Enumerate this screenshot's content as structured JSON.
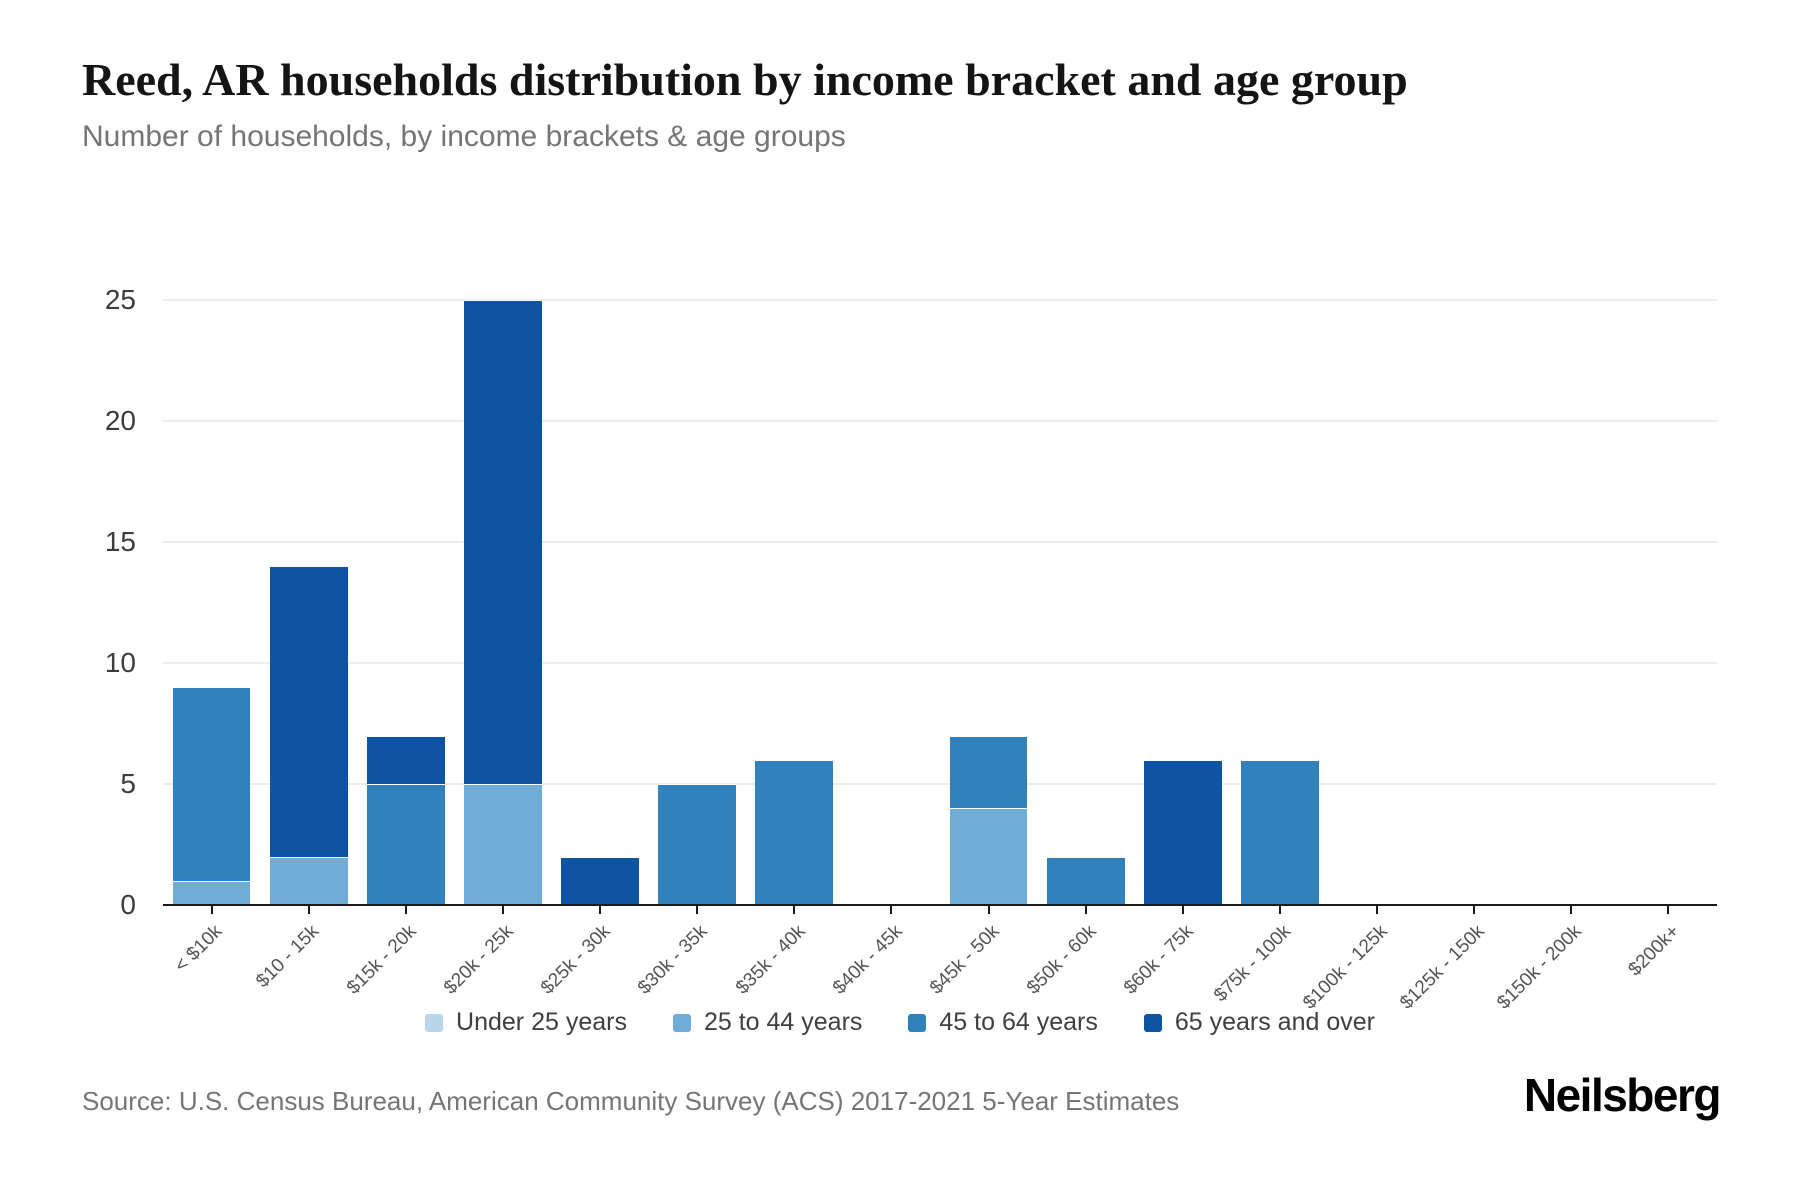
{
  "header": {
    "title": "Reed, AR households distribution by income bracket and age group",
    "subtitle": "Number of households, by income brackets & age groups"
  },
  "footer": {
    "source": "Source: U.S. Census Bureau, American Community Survey (ACS) 2017-2021 5-Year Estimates",
    "logo": "Neilsberg"
  },
  "colors": {
    "under_25": "#b9d5ea",
    "age_25_44": "#6fadd8",
    "age_45_64": "#3181bd",
    "age_65_over": "#0d55a2",
    "gridline": "#ededed",
    "axis": "#1a1a1a",
    "subtitle_text": "#757575"
  },
  "chart_data": {
    "type": "bar",
    "stacked": true,
    "title": "Reed, AR households distribution by income bracket and age group",
    "subtitle": "Number of households, by income brackets & age groups",
    "xlabel": "",
    "ylabel": "",
    "ylim": [
      0,
      25
    ],
    "yticks": [
      0,
      5,
      10,
      15,
      20,
      25
    ],
    "grid": true,
    "legend_position": "bottom",
    "categories": [
      "< $10k",
      "$10 - 15k",
      "$15k - 20k",
      "$20k - 25k",
      "$25k - 30k",
      "$30k - 35k",
      "$35k - 40k",
      "$40k - 45k",
      "$45k - 50k",
      "$50k - 60k",
      "$60k - 75k",
      "$75k - 100k",
      "$100k - 125k",
      "$125k - 150k",
      "$150k - 200k",
      "$200k+"
    ],
    "series": [
      {
        "name": "Under 25 years",
        "color": "#b9d5ea",
        "values": [
          0,
          0,
          0,
          0,
          0,
          0,
          0,
          0,
          0,
          0,
          0,
          0,
          0,
          0,
          0,
          0
        ]
      },
      {
        "name": "25 to 44 years",
        "color": "#6fadd8",
        "values": [
          1,
          2,
          0,
          5,
          0,
          0,
          0,
          0,
          4,
          0,
          0,
          0,
          0,
          0,
          0,
          0
        ]
      },
      {
        "name": "45 to 64 years",
        "color": "#3181bd",
        "values": [
          8,
          0,
          5,
          0,
          0,
          5,
          6,
          0,
          3,
          2,
          0,
          6,
          0,
          0,
          0,
          0
        ]
      },
      {
        "name": "65 years and over",
        "color": "#0d55a2",
        "values": [
          0,
          12,
          2,
          20,
          2,
          0,
          0,
          0,
          0,
          0,
          6,
          0,
          0,
          0,
          0,
          0
        ]
      }
    ],
    "totals": [
      9,
      14,
      7,
      25,
      2,
      5,
      6,
      0,
      7,
      2,
      6,
      6,
      0,
      0,
      0,
      0
    ]
  }
}
